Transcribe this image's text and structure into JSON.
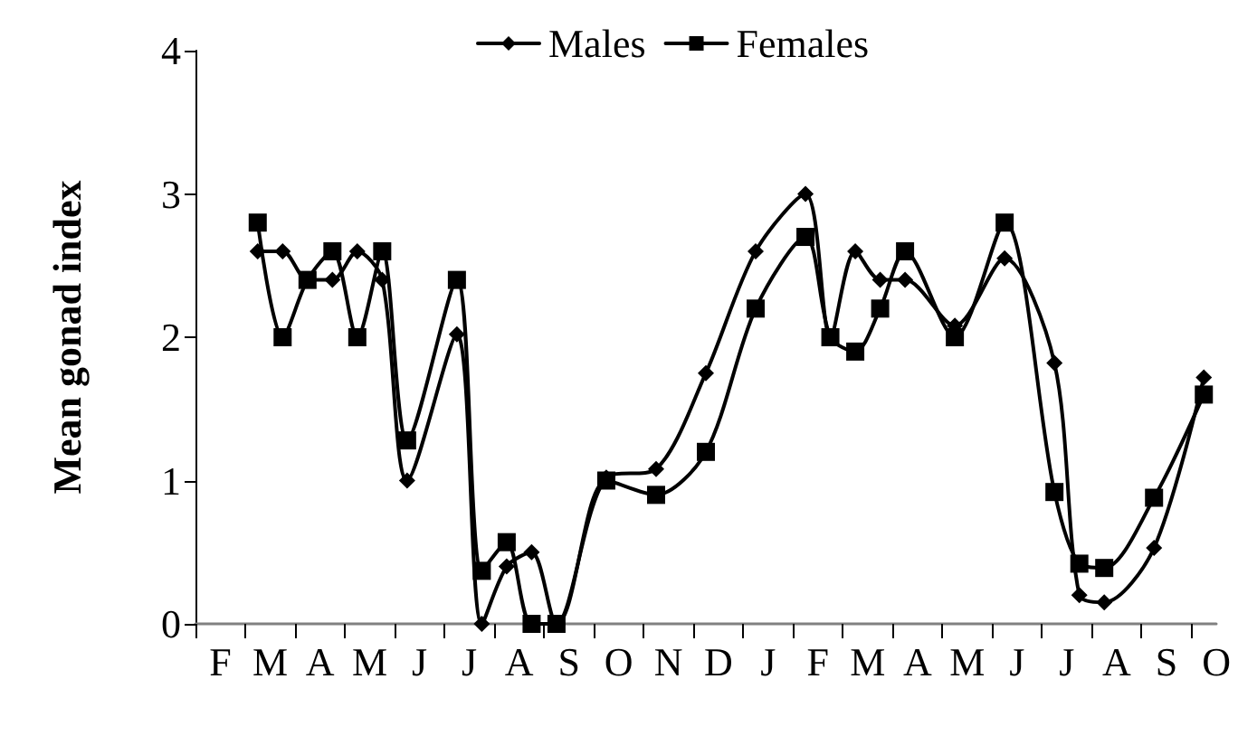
{
  "chart_data": {
    "type": "line",
    "ylabel": "Mean gonad index",
    "categories": [
      null,
      null,
      "F",
      null,
      null,
      null,
      "M",
      null,
      null,
      null,
      "A",
      null,
      null,
      null,
      "M",
      null,
      null,
      null,
      "J",
      null,
      null,
      null,
      "J",
      null,
      null,
      null,
      "A",
      null,
      null,
      null,
      "S",
      null,
      null,
      null,
      "O",
      null,
      null,
      null,
      "N",
      null,
      null,
      null,
      "D",
      null,
      null,
      null,
      "J",
      null,
      null,
      null,
      "F",
      null,
      null,
      null,
      "M",
      null,
      null,
      null,
      "A",
      null,
      null,
      null,
      "M",
      null,
      null,
      null,
      "J",
      null,
      null,
      null,
      "J",
      null,
      null,
      null,
      "A",
      null,
      null,
      null,
      "S",
      null,
      null,
      null,
      "O"
    ],
    "ylim": [
      0,
      4
    ],
    "yticks": [
      0,
      1,
      2,
      3,
      4
    ],
    "grid": false,
    "legend": "top",
    "line_style": "solid",
    "series": [
      {
        "name": "Males",
        "color": "#000000",
        "marker": "diamond",
        "values": [
          null,
          null,
          null,
          null,
          null,
          2.6,
          null,
          2.6,
          null,
          2.4,
          null,
          2.4,
          null,
          2.6,
          null,
          2.4,
          null,
          1.0,
          null,
          null,
          null,
          2.02,
          null,
          0,
          null,
          0.4,
          null,
          0.5,
          null,
          0,
          null,
          null,
          null,
          1.02,
          null,
          null,
          null,
          1.08,
          null,
          null,
          null,
          1.75,
          null,
          null,
          null,
          2.6,
          null,
          null,
          null,
          3.0,
          null,
          2.0,
          null,
          2.6,
          null,
          2.4,
          null,
          2.4,
          null,
          null,
          null,
          2.08,
          null,
          null,
          null,
          2.55,
          null,
          null,
          null,
          1.82,
          null,
          0.2,
          null,
          0.15,
          null,
          null,
          null,
          0.53,
          null,
          null,
          null,
          1.72,
          null
        ]
      },
      {
        "name": "Females",
        "color": "#000000",
        "marker": "square",
        "values": [
          null,
          null,
          null,
          null,
          null,
          2.8,
          null,
          2.0,
          null,
          2.4,
          null,
          2.6,
          null,
          2.0,
          null,
          2.6,
          null,
          1.28,
          null,
          null,
          null,
          2.4,
          null,
          0.37,
          null,
          0.57,
          null,
          0,
          null,
          0,
          null,
          null,
          null,
          1.0,
          null,
          null,
          null,
          0.9,
          null,
          null,
          null,
          1.2,
          null,
          null,
          null,
          2.2,
          null,
          null,
          null,
          2.7,
          null,
          2.0,
          null,
          1.9,
          null,
          2.2,
          null,
          2.6,
          null,
          null,
          null,
          2.0,
          null,
          null,
          null,
          2.8,
          null,
          null,
          null,
          0.92,
          null,
          0.42,
          null,
          0.39,
          null,
          null,
          null,
          0.88,
          null,
          null,
          null,
          1.6,
          null
        ]
      }
    ]
  }
}
